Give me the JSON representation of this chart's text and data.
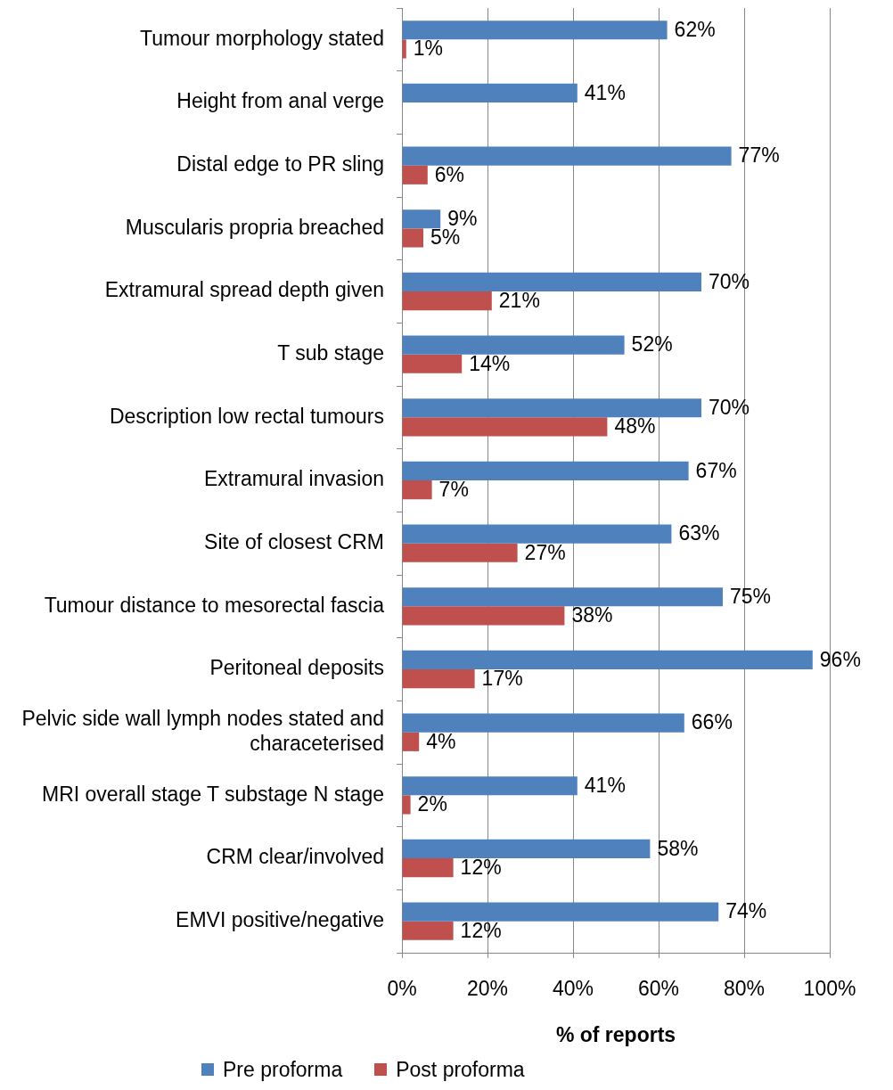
{
  "chart_data": {
    "type": "bar",
    "orientation": "horizontal",
    "categories": [
      "Tumour morphology stated",
      "Height from anal verge",
      "Distal edge to PR sling",
      "Muscularis propria breached",
      "Extramural spread depth given",
      "T sub stage",
      "Description low rectal tumours",
      "Extramural invasion",
      "Site of closest CRM",
      "Tumour distance to mesorectal fascia",
      "Peritoneal deposits",
      "Pelvic side wall lymph nodes stated and characeterised",
      "MRI overall stage T substage N stage",
      "CRM clear/involved",
      "EMVI positive/negative"
    ],
    "series": [
      {
        "name": "Pre proforma",
        "color": "#4f81bd",
        "values": [
          62,
          41,
          77,
          9,
          70,
          52,
          70,
          67,
          63,
          75,
          96,
          66,
          41,
          58,
          74
        ],
        "value_labels": [
          "62%",
          "41%",
          "77%",
          "9%",
          "70%",
          "52%",
          "70%",
          "67%",
          "63%",
          "75%",
          "96%",
          "66%",
          "41%",
          "58%",
          "74%"
        ]
      },
      {
        "name": "Post proforma",
        "color": "#c0504d",
        "values": [
          1,
          null,
          6,
          5,
          21,
          14,
          48,
          7,
          27,
          38,
          17,
          4,
          2,
          12,
          12
        ],
        "value_labels": [
          "1%",
          null,
          "6%",
          "5%",
          "21%",
          "14%",
          "48%",
          "7%",
          "27%",
          "38%",
          "17%",
          "4%",
          "2%",
          "12%",
          "12%"
        ]
      }
    ],
    "xlabel": "% of reports",
    "xlim": [
      0,
      100
    ],
    "xticks": [
      {
        "value": 0,
        "label": "0%"
      },
      {
        "value": 20,
        "label": "20%"
      },
      {
        "value": 40,
        "label": "40%"
      },
      {
        "value": 60,
        "label": "60%"
      },
      {
        "value": 80,
        "label": "80%"
      },
      {
        "value": 100,
        "label": "100%"
      }
    ],
    "grid": "x",
    "legend": "bottom"
  }
}
